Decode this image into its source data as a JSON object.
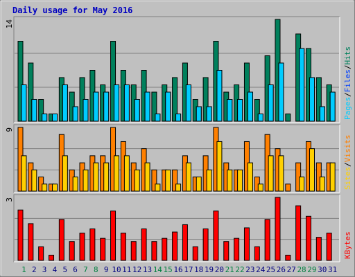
{
  "chart_data": {
    "type": "bar",
    "title": "Daily usage for May 2016",
    "categories": [
      "1",
      "2",
      "3",
      "4",
      "5",
      "6",
      "7",
      "8",
      "9",
      "10",
      "11",
      "12",
      "13",
      "14",
      "15",
      "16",
      "17",
      "18",
      "19",
      "20",
      "21",
      "22",
      "23",
      "24",
      "25",
      "26",
      "27",
      "28",
      "29",
      "30",
      "31"
    ],
    "category_colors": [
      "#008040",
      "#000080",
      "#000080",
      "#000080",
      "#000080",
      "#000080",
      "#008040",
      "#008040",
      "#000080",
      "#000080",
      "#000080",
      "#000080",
      "#000080",
      "#008040",
      "#008040",
      "#000080",
      "#000080",
      "#000080",
      "#000080",
      "#000080",
      "#008040",
      "#008040",
      "#000080",
      "#000080",
      "#000080",
      "#000080",
      "#000080",
      "#008040",
      "#008040",
      "#000080",
      "#000080"
    ],
    "legend_separator": "/",
    "grid": true,
    "panels": [
      {
        "ylim": [
          0,
          14
        ],
        "yticks": [
          14
        ],
        "series": [
          {
            "name": "Hits",
            "color": "#00805c",
            "values": [
              11,
              8,
              3,
              1,
              6,
              4,
              6,
              7,
              5,
              11,
              7,
              5,
              7,
              4,
              5,
              6,
              8,
              3,
              6,
              11,
              4,
              5,
              8,
              3,
              9,
              14,
              1,
              12,
              10,
              6,
              5
            ]
          },
          {
            "name": "Files",
            "color": "#0040ff",
            "values": [
              5,
              3,
              1,
              1,
              5,
              2,
              3,
              4,
              4,
              5,
              5,
              3,
              4,
              1,
              4,
              1,
              5,
              2,
              2,
              7,
              3,
              3,
              4,
              1,
              5,
              8,
              0,
              10,
              6,
              2,
              4
            ]
          },
          {
            "name": "Pages",
            "color": "#00ccff",
            "values": [
              5,
              3,
              1,
              1,
              5,
              2,
              3,
              4,
              4,
              5,
              5,
              3,
              4,
              1,
              4,
              1,
              5,
              2,
              2,
              7,
              3,
              3,
              4,
              1,
              5,
              8,
              0,
              10,
              6,
              2,
              4
            ]
          }
        ]
      },
      {
        "ylim": [
          0,
          9
        ],
        "yticks": [
          9
        ],
        "series": [
          {
            "name": "Visits",
            "color": "#ff8000",
            "values": [
              9,
              4,
              2,
              1,
              8,
              3,
              4,
              5,
              5,
              9,
              7,
              4,
              6,
              3,
              3,
              3,
              5,
              2,
              5,
              9,
              4,
              3,
              7,
              2,
              8,
              6,
              1,
              4,
              7,
              4,
              4
            ]
          },
          {
            "name": "Sites",
            "color": "#ffd000",
            "values": [
              5,
              3,
              1,
              1,
              5,
              2,
              3,
              4,
              4,
              5,
              5,
              3,
              4,
              1,
              3,
              1,
              4,
              2,
              3,
              7,
              3,
              3,
              4,
              1,
              5,
              5,
              0,
              2,
              6,
              2,
              4
            ]
          }
        ]
      },
      {
        "ylim": [
          0,
          3
        ],
        "yticks": [
          3
        ],
        "series": [
          {
            "name": "KBytes",
            "color": "#ff0000",
            "values": [
              2.4,
              1.75,
              0.65,
              0.25,
              1.95,
              0.9,
              1.3,
              1.5,
              1.05,
              2.35,
              1.3,
              0.9,
              1.5,
              0.9,
              1.05,
              1.35,
              1.7,
              0.65,
              1.5,
              2.35,
              0.9,
              1.05,
              1.55,
              0.65,
              1.95,
              3,
              0.25,
              2.6,
              2.1,
              1.1,
              1.3
            ]
          }
        ]
      }
    ]
  }
}
